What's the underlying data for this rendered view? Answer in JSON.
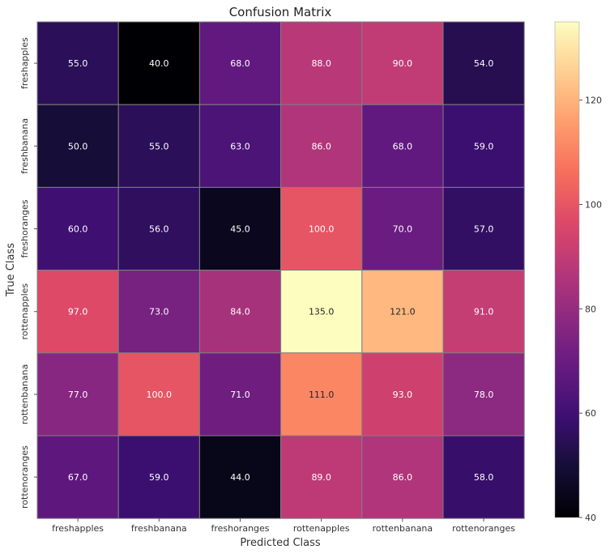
{
  "chart_data": {
    "type": "heatmap",
    "title": "Confusion Matrix",
    "xlabel": "Predicted Class",
    "ylabel": "True Class",
    "x_categories": [
      "freshapples",
      "freshbanana",
      "freshoranges",
      "rottenapples",
      "rottenbanana",
      "rottenoranges"
    ],
    "y_categories": [
      "freshapples",
      "freshbanana",
      "freshoranges",
      "rottenapples",
      "rottenbanana",
      "rottenoranges"
    ],
    "values": [
      [
        55.0,
        40.0,
        68.0,
        88.0,
        90.0,
        54.0
      ],
      [
        50.0,
        55.0,
        63.0,
        86.0,
        68.0,
        59.0
      ],
      [
        60.0,
        56.0,
        45.0,
        100.0,
        70.0,
        57.0
      ],
      [
        97.0,
        73.0,
        84.0,
        135.0,
        121.0,
        91.0
      ],
      [
        77.0,
        100.0,
        71.0,
        111.0,
        93.0,
        78.0
      ],
      [
        67.0,
        59.0,
        44.0,
        89.0,
        86.0,
        58.0
      ]
    ],
    "colormap": "magma",
    "colorbar": {
      "range": [
        40,
        135
      ],
      "ticks": [
        40,
        60,
        80,
        100,
        120
      ]
    },
    "cell_border_color": "#808080",
    "annotation_format": "0.1f"
  }
}
